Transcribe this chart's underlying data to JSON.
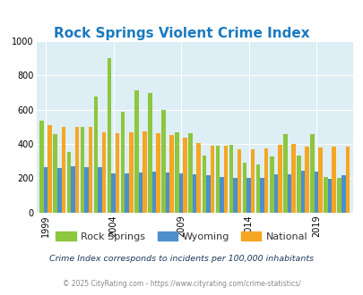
{
  "title": "Rock Springs Violent Crime Index",
  "years": [
    1999,
    2000,
    2001,
    2002,
    2003,
    2004,
    2005,
    2006,
    2007,
    2008,
    2009,
    2010,
    2011,
    2012,
    2013,
    2014,
    2015,
    2016,
    2017,
    2018,
    2019,
    2020,
    2021
  ],
  "rock_springs": [
    535,
    460,
    355,
    500,
    675,
    900,
    590,
    715,
    700,
    600,
    470,
    465,
    330,
    390,
    395,
    290,
    280,
    325,
    460,
    330,
    460,
    205,
    200
  ],
  "wyoming": [
    265,
    260,
    270,
    265,
    265,
    230,
    230,
    235,
    240,
    235,
    230,
    225,
    215,
    205,
    200,
    200,
    200,
    220,
    220,
    245,
    240,
    195,
    215
  ],
  "national": [
    510,
    500,
    500,
    500,
    470,
    465,
    470,
    475,
    465,
    455,
    435,
    405,
    390,
    390,
    370,
    370,
    375,
    395,
    400,
    385,
    380,
    385,
    385
  ],
  "colors": {
    "rock_springs": "#8dc63f",
    "wyoming": "#4d8fcc",
    "national": "#f5a623"
  },
  "ylim": [
    0,
    1000
  ],
  "yticks": [
    0,
    200,
    400,
    600,
    800,
    1000
  ],
  "xtick_years": [
    1999,
    2004,
    2009,
    2014,
    2019
  ],
  "fig_bg": "#ffffff",
  "plot_bg": "#ddeef5",
  "title_color": "#1a7abf",
  "legend_labels": [
    "Rock Springs",
    "Wyoming",
    "National"
  ],
  "footnote1": "Crime Index corresponds to incidents per 100,000 inhabitants",
  "footnote2": "© 2025 CityRating.com - https://www.cityrating.com/crime-statistics/"
}
